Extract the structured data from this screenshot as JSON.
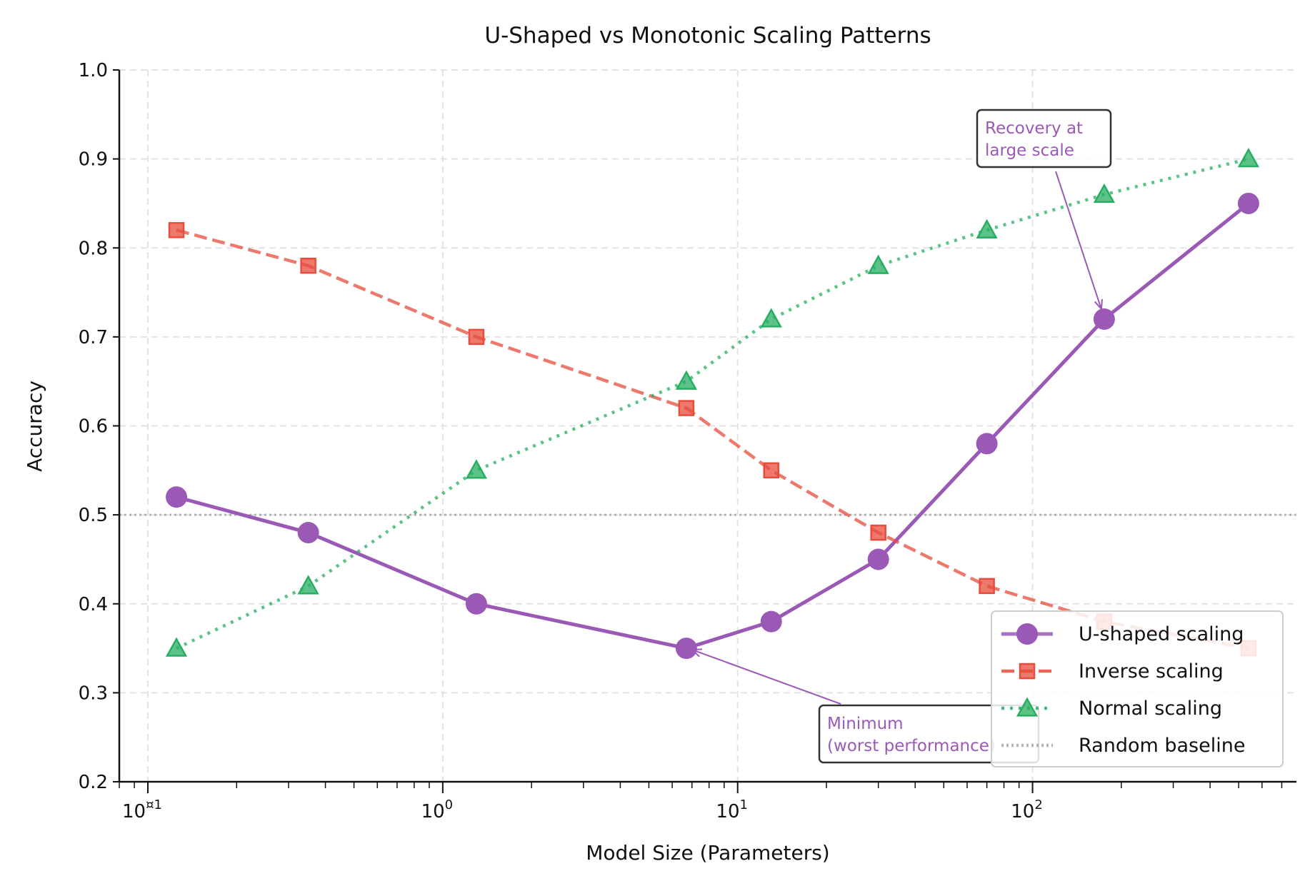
{
  "chart_data": {
    "type": "line",
    "title": "U-Shaped vs Monotonic Scaling Patterns",
    "xlabel": "Model Size (Parameters)",
    "ylabel": "Accuracy",
    "xscale": "log",
    "xlim": [
      0.08,
      785
    ],
    "ylim": [
      0.2,
      1.0
    ],
    "grid": true,
    "x": [
      0.125,
      0.35,
      1.3,
      6.7,
      13,
      30,
      70,
      175,
      540
    ],
    "x_ticks": [
      {
        "value": 0.1,
        "base": "10",
        "exp": "¤1"
      },
      {
        "value": 1,
        "base": "10",
        "exp": "0"
      },
      {
        "value": 10,
        "base": "10",
        "exp": "1"
      },
      {
        "value": 100,
        "base": "10",
        "exp": "2"
      }
    ],
    "y_ticks": [
      "0.2",
      "0.3",
      "0.4",
      "0.5",
      "0.6",
      "0.7",
      "0.8",
      "0.9",
      "1.0"
    ],
    "series": [
      {
        "name": "U-shaped scaling",
        "color": "#9b59b6",
        "style": "solid",
        "marker": "circle",
        "values": [
          0.52,
          0.48,
          0.4,
          0.35,
          0.38,
          0.45,
          0.58,
          0.72,
          0.85
        ]
      },
      {
        "name": "Inverse scaling",
        "color": "#e74c3c",
        "style": "dashed",
        "marker": "square",
        "values": [
          0.82,
          0.78,
          0.7,
          0.62,
          0.55,
          0.48,
          0.42,
          0.38,
          0.35
        ]
      },
      {
        "name": "Normal scaling",
        "color": "#27ae60",
        "style": "dotted",
        "marker": "triangle",
        "values": [
          0.35,
          0.42,
          0.55,
          0.65,
          0.72,
          0.78,
          0.82,
          0.86,
          0.9
        ]
      }
    ],
    "baseline": {
      "name": "Random baseline",
      "value": 0.5,
      "color": "#999999"
    },
    "annotations": [
      {
        "lines": [
          "Recovery at",
          "large scale"
        ],
        "target_x": 175,
        "target_y": 0.72
      },
      {
        "lines": [
          "Minimum",
          "(worst performance)"
        ],
        "target_x": 6.7,
        "target_y": 0.35
      }
    ],
    "legend_position": "lower-right"
  }
}
